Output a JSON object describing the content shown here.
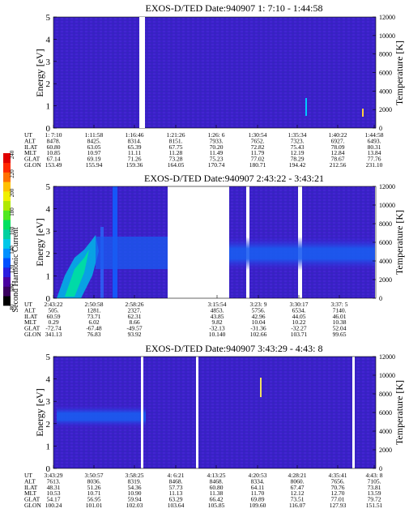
{
  "colorbar": {
    "label": "Second Harmonic Current",
    "ticks": [
      "80",
      "100",
      "120",
      "140",
      "160",
      "180",
      "200",
      "220",
      "240"
    ],
    "colors": [
      "#000000",
      "#3a005f",
      "#4a00a0",
      "#2a1ee0",
      "#0050ff",
      "#0090ff",
      "#00c8e8",
      "#00d0a0",
      "#00e060",
      "#50e820",
      "#b0e800",
      "#f0f000",
      "#ffc000",
      "#ff7000",
      "#ff2800",
      "#e00000"
    ]
  },
  "axis_labels": {
    "energy": "Energy [eV]",
    "temperature": "Temperature [K]"
  },
  "ylabels_left": [
    "0",
    "1",
    "2",
    "3",
    "4",
    "5"
  ],
  "ylabels_right": [
    "0",
    "2000",
    "4000",
    "6000",
    "8000",
    "10000",
    "12000"
  ],
  "row_labels": [
    "UT",
    "ALT",
    "ILAT",
    "MLT",
    "GLAT",
    "GLON"
  ],
  "panels": [
    {
      "title": "EXOS-D/TED   Date:940907  1: 7:10 - 1:44:58",
      "columns": [
        {
          "UT": "1: 7:10",
          "ALT": "8478.",
          "ILAT": "60.80",
          "MLT": "10.85",
          "GLAT": "67.14",
          "GLON": "153.49"
        },
        {
          "UT": "1:11:58",
          "ALT": "8425.",
          "ILAT": "63.05",
          "MLT": "10.97",
          "GLAT": "69.19",
          "GLON": "155.94"
        },
        {
          "UT": "1:16:46",
          "ALT": "8314.",
          "ILAT": "65.39",
          "MLT": "11.11",
          "GLAT": "71.26",
          "GLON": "159.36"
        },
        {
          "UT": "1:21:26",
          "ALT": "8151.",
          "ILAT": "67.75",
          "MLT": "11.28",
          "GLAT": "73.28",
          "GLON": "164.05"
        },
        {
          "UT": "1:26: 6",
          "ALT": "7933.",
          "ILAT": "70.20",
          "MLT": "11.49",
          "GLAT": "75.23",
          "GLON": "170.74"
        },
        {
          "UT": "1:30:54",
          "ALT": "7652.",
          "ILAT": "72.82",
          "MLT": "11.79",
          "GLAT": "77.02",
          "GLON": "180.71"
        },
        {
          "UT": "1:35:34",
          "ALT": "7323.",
          "ILAT": "75.43",
          "MLT": "12.19",
          "GLAT": "78.29",
          "GLON": "194.42"
        },
        {
          "UT": "1:40:22",
          "ALT": "6927.",
          "ILAT": "78.09",
          "MLT": "12.84",
          "GLAT": "78.67",
          "GLON": "212.56"
        },
        {
          "UT": "1:44:58",
          "ALT": "6493.",
          "ILAT": "80.31",
          "MLT": "13.84",
          "GLAT": "77.76",
          "GLON": "231.10"
        }
      ]
    },
    {
      "title": "EXOS-D/TED   Date:940907  2:43:22 - 3:43:21",
      "columns": [
        {
          "UT": "2:43:22",
          "ALT": "505.",
          "ILAT": "60.59",
          "MLT": "0.29",
          "GLAT": "-72.74",
          "GLON": "341.13"
        },
        {
          "UT": "2:50:58",
          "ALT": "1281.",
          "ILAT": "73.71",
          "MLT": "6.02",
          "GLAT": "-67.48",
          "GLON": "76.83"
        },
        {
          "UT": "2:58:26",
          "ALT": "2327.",
          "ILAT": "62.31",
          "MLT": "8.66",
          "GLAT": "-49.57",
          "GLON": "93.92"
        },
        {
          "UT": "3:15:54",
          "ALT": "4853.",
          "ILAT": "43.85",
          "MLT": "9.82",
          "GLAT": "-32.13",
          "GLON": "10.140"
        },
        {
          "UT": "3:23: 9",
          "ALT": "5756.",
          "ILAT": "42.96",
          "MLT": "10.04",
          "GLAT": "-31.36",
          "GLON": "102.66"
        },
        {
          "UT": "3:30:17",
          "ALT": "6534.",
          "ILAT": "44.05",
          "MLT": "10.22",
          "GLAT": "-32.27",
          "GLON": "103.71"
        },
        {
          "UT": "3:37: 5",
          "ALT": "7140.",
          "ILAT": "46.01",
          "MLT": "10.38",
          "GLAT": "52.04",
          "GLON": "99.65"
        }
      ]
    },
    {
      "title": "EXOS-D/TED   Date:940907  3:43:29 - 4:43: 8",
      "columns": [
        {
          "UT": "3:43:29",
          "ALT": "7613.",
          "ILAT": "48.31",
          "MLT": "10.53",
          "GLAT": "54.17",
          "GLON": "100.24"
        },
        {
          "UT": "3:50:57",
          "ALT": "8036.",
          "ILAT": "51.26",
          "MLT": "10.71",
          "GLAT": "56.95",
          "GLON": "101.01"
        },
        {
          "UT": "3:58:25",
          "ALT": "8319.",
          "ILAT": "54.36",
          "MLT": "10.90",
          "GLAT": "59.94",
          "GLON": "102.03"
        },
        {
          "UT": "4: 6:21",
          "ALT": "8468.",
          "ILAT": "57.73",
          "MLT": "11.13",
          "GLAT": "63.29",
          "GLON": "103.64"
        },
        {
          "UT": "4:13:25",
          "ALT": "8468.",
          "ILAT": "60.80",
          "MLT": "11.38",
          "GLAT": "66.42",
          "GLON": "105.85"
        },
        {
          "UT": "4:20:53",
          "ALT": "8334.",
          "ILAT": "64.11",
          "MLT": "11.70",
          "GLAT": "69.89",
          "GLON": "109.60"
        },
        {
          "UT": "4:28:21",
          "ALT": "8060.",
          "ILAT": "67.47",
          "MLT": "12.12",
          "GLAT": "73.51",
          "GLON": "116.07"
        },
        {
          "UT": "4:35:41",
          "ALT": "7656.",
          "ILAT": "70.76",
          "MLT": "12.70",
          "GLAT": "77.01",
          "GLON": "127.93"
        },
        {
          "UT": "4:43: 8",
          "ALT": "7105.",
          "ILAT": "73.81",
          "MLT": "13.59",
          "GLAT": "79.72",
          "GLON": "151.51"
        }
      ]
    }
  ],
  "chart_data": [
    {
      "type": "heatmap",
      "title": "EXOS-D/TED   Date:940907  1: 7:10 - 1:44:58",
      "xlabel": "UT",
      "ylabel": "Energy [eV]",
      "ylabel_right": "Temperature [K]",
      "ylim": [
        0,
        5
      ],
      "ylim_right": [
        0,
        12000
      ],
      "x": [
        "1: 7:10",
        "1:11:58",
        "1:16:46",
        "1:21:26",
        "1:26: 6",
        "1:30:54",
        "1:35:34",
        "1:40:22",
        "1:44:58"
      ],
      "data_gaps": [
        [
          "1:16:46",
          "1:17:30"
        ]
      ]
    },
    {
      "type": "heatmap",
      "title": "EXOS-D/TED   Date:940907  2:43:22 - 3:43:21",
      "xlabel": "UT",
      "ylabel": "Energy [eV]",
      "ylabel_right": "Temperature [K]",
      "ylim": [
        0,
        5
      ],
      "ylim_right": [
        0,
        12000
      ],
      "x": [
        "2:43:22",
        "2:50:58",
        "2:58:26",
        "3:15:54",
        "3:23: 9",
        "3:30:17",
        "3:37: 5"
      ]
    },
    {
      "type": "heatmap",
      "title": "EXOS-D/TED   Date:940907  3:43:29 - 4:43: 8",
      "xlabel": "UT",
      "ylabel": "Energy [eV]",
      "ylabel_right": "Temperature [K]",
      "ylim": [
        0,
        5
      ],
      "ylim_right": [
        0,
        12000
      ],
      "x": [
        "3:43:29",
        "3:50:57",
        "3:58:25",
        "4: 6:21",
        "4:13:25",
        "4:20:53",
        "4:28:21",
        "4:35:41",
        "4:43: 8"
      ]
    }
  ]
}
